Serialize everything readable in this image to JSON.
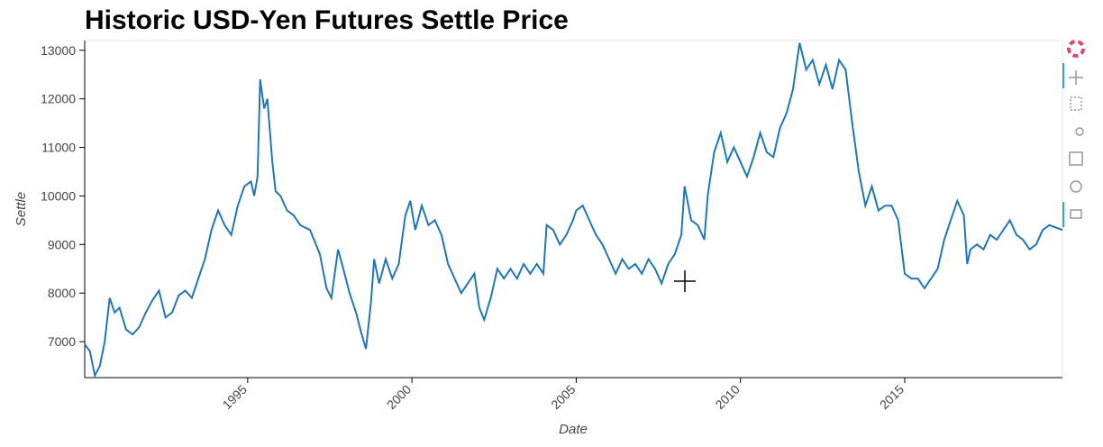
{
  "chart_data": {
    "type": "line",
    "title": "Historic USD-Yen Futures Settle Price",
    "x_label": "Date",
    "y_label": "Settle",
    "color": "#1f77b4",
    "xlim": [
      1990.04,
      2019.8
    ],
    "ylim": [
      6260,
      13200
    ],
    "xticks": [
      1995,
      2000,
      2005,
      2010,
      2015
    ],
    "yticks": [
      7000,
      8000,
      9000,
      10000,
      11000,
      12000,
      13000
    ],
    "x": [
      1990.04,
      1990.2,
      1990.35,
      1990.5,
      1990.65,
      1990.8,
      1990.95,
      1991.1,
      1991.3,
      1991.5,
      1991.7,
      1991.9,
      1992.1,
      1992.3,
      1992.5,
      1992.7,
      1992.9,
      1993.1,
      1993.3,
      1993.5,
      1993.7,
      1993.9,
      1994.1,
      1994.3,
      1994.5,
      1994.7,
      1994.9,
      1995.1,
      1995.2,
      1995.3,
      1995.38,
      1995.5,
      1995.6,
      1995.75,
      1995.85,
      1996.0,
      1996.2,
      1996.4,
      1996.6,
      1996.9,
      1997.2,
      1997.4,
      1997.55,
      1997.75,
      1997.95,
      1998.1,
      1998.3,
      1998.45,
      1998.6,
      1998.75,
      1998.85,
      1999.0,
      1999.2,
      1999.4,
      1999.6,
      1999.8,
      1999.95,
      2000.1,
      2000.3,
      2000.5,
      2000.7,
      2000.9,
      2001.1,
      2001.3,
      2001.5,
      2001.7,
      2001.9,
      2002.05,
      2002.2,
      2002.4,
      2002.6,
      2002.8,
      2003.0,
      2003.2,
      2003.4,
      2003.6,
      2003.8,
      2004.0,
      2004.1,
      2004.3,
      2004.5,
      2004.7,
      2004.9,
      2005.0,
      2005.2,
      2005.4,
      2005.6,
      2005.8,
      2006.0,
      2006.2,
      2006.4,
      2006.6,
      2006.8,
      2007.0,
      2007.2,
      2007.4,
      2007.6,
      2007.8,
      2008.0,
      2008.2,
      2008.3,
      2008.5,
      2008.7,
      2008.9,
      2009.0,
      2009.2,
      2009.4,
      2009.6,
      2009.8,
      2010.0,
      2010.2,
      2010.4,
      2010.6,
      2010.8,
      2011.0,
      2011.2,
      2011.4,
      2011.6,
      2011.8,
      2012.0,
      2012.2,
      2012.4,
      2012.6,
      2012.8,
      2013.0,
      2013.2,
      2013.4,
      2013.6,
      2013.8,
      2014.0,
      2014.2,
      2014.4,
      2014.6,
      2014.8,
      2015.0,
      2015.2,
      2015.4,
      2015.6,
      2015.8,
      2016.0,
      2016.2,
      2016.4,
      2016.6,
      2016.8,
      2016.9,
      2017.0,
      2017.2,
      2017.4,
      2017.6,
      2017.8,
      2018.0,
      2018.2,
      2018.4,
      2018.6,
      2018.8,
      2019.0,
      2019.2,
      2019.4,
      2019.6,
      2019.8
    ],
    "values": [
      6950,
      6800,
      6300,
      6500,
      7000,
      7900,
      7600,
      7700,
      7250,
      7150,
      7300,
      7600,
      7850,
      8050,
      7500,
      7600,
      7950,
      8050,
      7900,
      8300,
      8700,
      9300,
      9700,
      9400,
      9200,
      9800,
      10200,
      10300,
      10000,
      10400,
      12400,
      11800,
      12000,
      10700,
      10100,
      10000,
      9700,
      9600,
      9400,
      9300,
      8800,
      8100,
      7900,
      8900,
      8400,
      8000,
      7600,
      7200,
      6850,
      7800,
      8700,
      8200,
      8700,
      8300,
      8600,
      9600,
      9900,
      9300,
      9800,
      9400,
      9500,
      9200,
      8600,
      8300,
      8000,
      8200,
      8400,
      7700,
      7450,
      7900,
      8500,
      8300,
      8500,
      8300,
      8600,
      8400,
      8600,
      8400,
      9400,
      9300,
      9000,
      9200,
      9500,
      9700,
      9800,
      9500,
      9200,
      9000,
      8700,
      8400,
      8700,
      8500,
      8600,
      8400,
      8700,
      8500,
      8200,
      8600,
      8800,
      9200,
      10200,
      9500,
      9400,
      9100,
      10000,
      10900,
      11300,
      10700,
      11000,
      10700,
      10400,
      10800,
      11300,
      10900,
      10800,
      11400,
      11700,
      12200,
      13150,
      12600,
      12800,
      12300,
      12700,
      12200,
      12800,
      12600,
      11500,
      10500,
      9800,
      10200,
      9700,
      9800,
      9800,
      9500,
      8400,
      8300,
      8300,
      8100,
      8300,
      8500,
      9100,
      9500,
      9900,
      9600,
      8600,
      8900,
      9000,
      8900,
      9200,
      9100,
      9300,
      9500,
      9200,
      9100,
      8900,
      9000,
      9300,
      9400,
      9350,
      9300
    ]
  }
}
